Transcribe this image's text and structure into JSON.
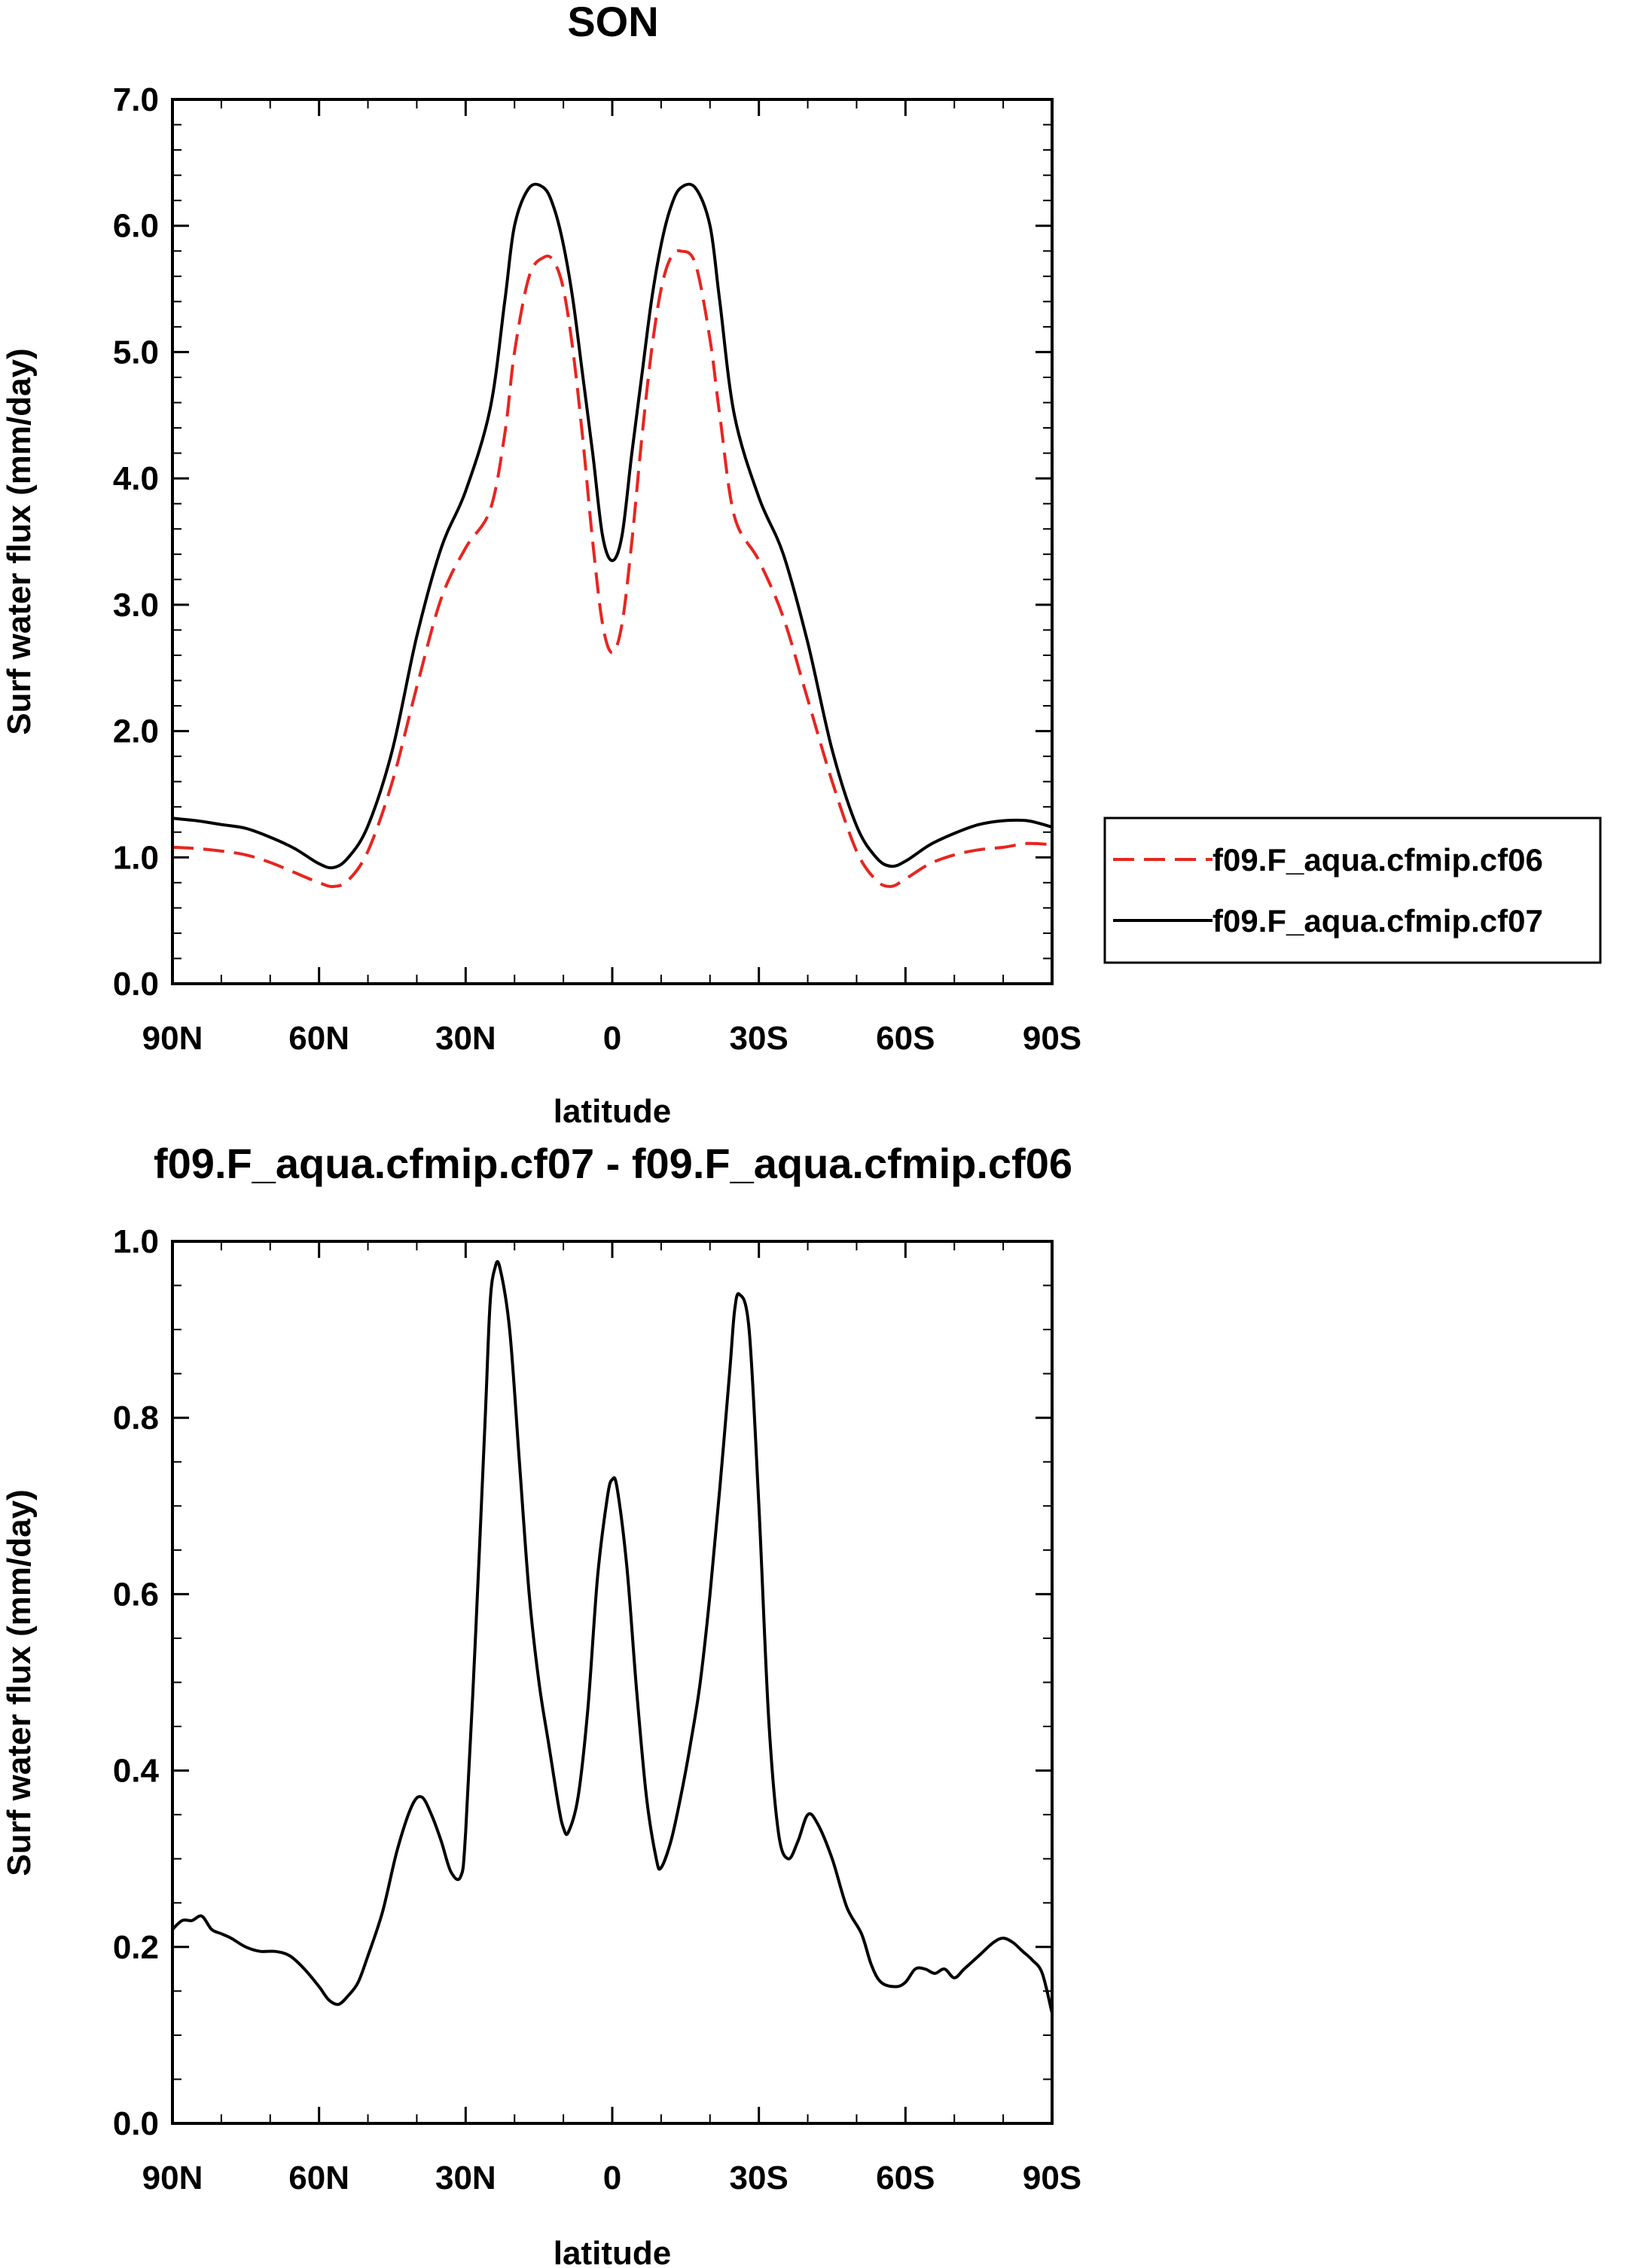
{
  "chart_data": [
    {
      "type": "line",
      "title": "SON",
      "xlabel": "latitude",
      "ylabel": "Surf water flux (mm/day)",
      "xlim": [
        90,
        -90
      ],
      "ylim": [
        0,
        7
      ],
      "x_ticks": [
        {
          "value": 90,
          "label": "90N"
        },
        {
          "value": 60,
          "label": "60N"
        },
        {
          "value": 30,
          "label": "30N"
        },
        {
          "value": 0,
          "label": "0"
        },
        {
          "value": -30,
          "label": "30S"
        },
        {
          "value": -60,
          "label": "60S"
        },
        {
          "value": -90,
          "label": "90S"
        }
      ],
      "y_ticks": [
        {
          "value": 0,
          "label": "0.0"
        },
        {
          "value": 1,
          "label": "1.0"
        },
        {
          "value": 2,
          "label": "2.0"
        },
        {
          "value": 3,
          "label": "3.0"
        },
        {
          "value": 4,
          "label": "4.0"
        },
        {
          "value": 5,
          "label": "5.0"
        },
        {
          "value": 6,
          "label": "6.0"
        },
        {
          "value": 7,
          "label": "7.0"
        }
      ],
      "grid": false,
      "legend_position": "right",
      "series": [
        {
          "name": "f09.F_aqua.cfmip.cf06",
          "color": "#e8251f",
          "dash": true,
          "x": [
            90,
            85,
            80,
            75,
            70,
            65,
            60,
            57,
            54,
            50,
            45,
            40,
            35,
            30,
            25,
            22,
            20,
            17,
            14,
            12,
            10,
            8,
            6,
            4,
            2,
            0,
            -2,
            -4,
            -6,
            -8,
            -10,
            -12,
            -14,
            -17,
            -20,
            -22,
            -25,
            -30,
            -35,
            -40,
            -45,
            -50,
            -54,
            -57,
            -60,
            -65,
            -70,
            -75,
            -80,
            -85,
            -90
          ],
          "values": [
            1.08,
            1.07,
            1.05,
            1.02,
            0.96,
            0.88,
            0.8,
            0.77,
            0.82,
            1.05,
            1.6,
            2.35,
            3.05,
            3.45,
            3.75,
            4.35,
            5.0,
            5.6,
            5.75,
            5.72,
            5.5,
            5.0,
            4.3,
            3.5,
            2.85,
            2.62,
            2.85,
            3.5,
            4.3,
            5.0,
            5.5,
            5.75,
            5.8,
            5.7,
            5.1,
            4.5,
            3.7,
            3.35,
            2.9,
            2.25,
            1.6,
            1.05,
            0.82,
            0.77,
            0.83,
            0.95,
            1.02,
            1.06,
            1.08,
            1.11,
            1.1
          ]
        },
        {
          "name": "f09.F_aqua.cfmip.cf07",
          "color": "#000000",
          "dash": false,
          "x": [
            90,
            85,
            80,
            75,
            70,
            65,
            60,
            57,
            54,
            50,
            45,
            40,
            35,
            30,
            25,
            22,
            20,
            17,
            14,
            12,
            10,
            8,
            6,
            4,
            2,
            0,
            -2,
            -4,
            -6,
            -8,
            -10,
            -12,
            -14,
            -17,
            -20,
            -22,
            -25,
            -30,
            -35,
            -40,
            -45,
            -50,
            -54,
            -57,
            -60,
            -65,
            -70,
            -75,
            -80,
            -85,
            -90
          ],
          "values": [
            1.31,
            1.29,
            1.26,
            1.23,
            1.16,
            1.07,
            0.95,
            0.92,
            1.0,
            1.25,
            1.85,
            2.75,
            3.45,
            3.9,
            4.55,
            5.4,
            6.0,
            6.3,
            6.3,
            6.15,
            5.85,
            5.4,
            4.8,
            4.2,
            3.55,
            3.35,
            3.55,
            4.2,
            4.8,
            5.4,
            5.85,
            6.15,
            6.3,
            6.3,
            6.0,
            5.4,
            4.5,
            3.85,
            3.4,
            2.7,
            1.85,
            1.25,
            1.0,
            0.93,
            0.97,
            1.1,
            1.19,
            1.26,
            1.29,
            1.29,
            1.24
          ]
        }
      ]
    },
    {
      "type": "line",
      "title": "f09.F_aqua.cfmip.cf07 - f09.F_aqua.cfmip.cf06",
      "xlabel": "latitude",
      "ylabel": "Surf water flux (mm/day)",
      "xlim": [
        90,
        -90
      ],
      "ylim": [
        0,
        1
      ],
      "x_ticks": [
        {
          "value": 90,
          "label": "90N"
        },
        {
          "value": 60,
          "label": "60N"
        },
        {
          "value": 30,
          "label": "30N"
        },
        {
          "value": 0,
          "label": "0"
        },
        {
          "value": -30,
          "label": "30S"
        },
        {
          "value": -60,
          "label": "60S"
        },
        {
          "value": -90,
          "label": "90S"
        }
      ],
      "y_ticks": [
        {
          "value": 0,
          "label": "0.0"
        },
        {
          "value": 0.2,
          "label": "0.2"
        },
        {
          "value": 0.4,
          "label": "0.4"
        },
        {
          "value": 0.6,
          "label": "0.6"
        },
        {
          "value": 0.8,
          "label": "0.8"
        },
        {
          "value": 1,
          "label": "1.0"
        }
      ],
      "grid": false,
      "series": [
        {
          "name": "f09.F_aqua.cfmip.cf07 - f09.F_aqua.cfmip.cf06",
          "color": "#000000",
          "dash": false,
          "x": [
            90,
            88,
            86,
            84,
            82,
            80,
            78,
            75,
            72,
            69,
            66,
            63,
            60,
            58,
            56,
            54,
            52,
            50,
            47,
            44,
            41,
            39,
            37,
            35,
            33,
            31,
            30,
            28,
            26,
            25,
            24,
            23,
            21,
            19,
            17,
            15,
            13,
            11,
            10,
            9,
            7,
            5,
            3,
            1,
            0,
            -1,
            -3,
            -5,
            -7,
            -9,
            -10,
            -12,
            -14,
            -16,
            -18,
            -20,
            -22,
            -24,
            -25,
            -26,
            -28,
            -30,
            -32,
            -34,
            -36,
            -38,
            -40,
            -42,
            -45,
            -48,
            -51,
            -53,
            -55,
            -58,
            -60,
            -62,
            -64,
            -66,
            -68,
            -70,
            -72,
            -75,
            -78,
            -80,
            -82,
            -84,
            -86,
            -88,
            -90
          ],
          "values": [
            0.22,
            0.23,
            0.23,
            0.235,
            0.22,
            0.215,
            0.21,
            0.2,
            0.195,
            0.195,
            0.19,
            0.175,
            0.155,
            0.14,
            0.135,
            0.145,
            0.16,
            0.19,
            0.24,
            0.31,
            0.36,
            0.37,
            0.35,
            0.32,
            0.285,
            0.28,
            0.33,
            0.55,
            0.8,
            0.93,
            0.97,
            0.97,
            0.9,
            0.75,
            0.6,
            0.5,
            0.43,
            0.36,
            0.335,
            0.33,
            0.37,
            0.47,
            0.62,
            0.71,
            0.73,
            0.72,
            0.63,
            0.49,
            0.37,
            0.3,
            0.29,
            0.32,
            0.37,
            0.43,
            0.5,
            0.6,
            0.72,
            0.85,
            0.92,
            0.94,
            0.9,
            0.7,
            0.46,
            0.33,
            0.3,
            0.32,
            0.35,
            0.34,
            0.3,
            0.245,
            0.215,
            0.18,
            0.16,
            0.155,
            0.16,
            0.175,
            0.175,
            0.17,
            0.175,
            0.165,
            0.175,
            0.19,
            0.205,
            0.21,
            0.205,
            0.195,
            0.185,
            0.17,
            0.125
          ]
        }
      ]
    }
  ]
}
